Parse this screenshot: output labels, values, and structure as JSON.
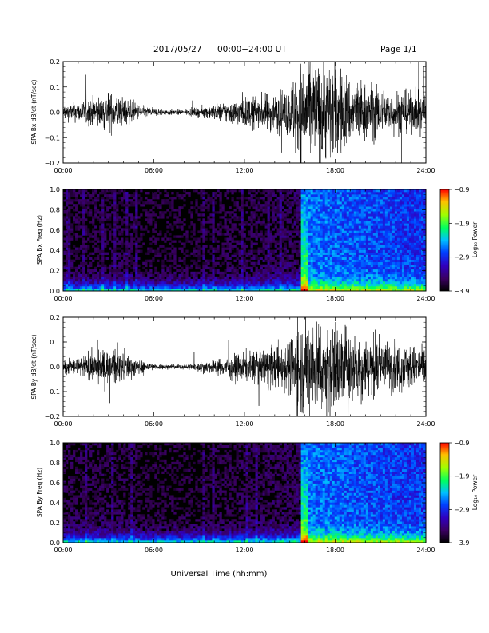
{
  "header": {
    "date_label": "2017/05/27",
    "time_range": "00:00−24:00 UT",
    "page_label": "Page 1/1"
  },
  "xaxis": {
    "ticks": [
      "00:00",
      "06:00",
      "12:00",
      "18:00",
      "24:00"
    ],
    "label": "Universal Time (hh:mm)"
  },
  "colorbar": {
    "labels": [
      "−0.9",
      "−1.9",
      "−2.9",
      "−3.9"
    ],
    "title": "Log₁₀ Power"
  },
  "chart_data": [
    {
      "type": "line",
      "ylabel": "SPA Bx dB/dt (nT/sec)",
      "ylim": [
        -0.2,
        0.2
      ],
      "yticks": [
        "0.2",
        "0.1",
        "0.0",
        "−0.1",
        "−0.2"
      ],
      "xlim": [
        0,
        24
      ],
      "x": [
        0,
        1,
        2,
        3,
        4,
        5,
        6,
        7,
        8,
        9,
        10,
        11,
        12,
        13,
        14,
        15,
        15.5,
        16,
        17,
        18,
        19,
        20,
        21,
        22,
        23,
        24
      ],
      "amplitude": [
        0.03,
        0.04,
        0.06,
        0.08,
        0.06,
        0.03,
        0.015,
        0.012,
        0.01,
        0.02,
        0.03,
        0.05,
        0.06,
        0.07,
        0.08,
        0.1,
        0.2,
        0.2,
        0.2,
        0.2,
        0.15,
        0.12,
        0.1,
        0.09,
        0.08,
        0.07
      ]
    },
    {
      "type": "heatmap",
      "ylabel": "SPA Bx Freq (Hz)",
      "ylim": [
        0.0,
        1.0
      ],
      "yticks": [
        "1.0",
        "0.8",
        "0.6",
        "0.4",
        "0.2",
        "0.0"
      ],
      "xlim": [
        0,
        24
      ],
      "colorbar_range": [
        -3.9,
        -0.9
      ],
      "zlabel": "Log10 Power"
    },
    {
      "type": "line",
      "ylabel": "SPA By dB/dt (nT/sec)",
      "ylim": [
        -0.2,
        0.2
      ],
      "yticks": [
        "0.2",
        "0.1",
        "0.0",
        "−0.1",
        "−0.2"
      ],
      "xlim": [
        0,
        24
      ],
      "x": [
        0,
        1,
        2,
        3,
        4,
        5,
        6,
        7,
        8,
        9,
        10,
        11,
        12,
        13,
        14,
        15,
        15.5,
        16,
        17,
        18,
        19,
        20,
        21,
        22,
        23,
        24
      ],
      "amplitude": [
        0.03,
        0.04,
        0.06,
        0.07,
        0.06,
        0.03,
        0.012,
        0.01,
        0.01,
        0.02,
        0.03,
        0.045,
        0.06,
        0.07,
        0.09,
        0.11,
        0.2,
        0.2,
        0.2,
        0.2,
        0.16,
        0.13,
        0.11,
        0.1,
        0.09,
        0.08
      ]
    },
    {
      "type": "heatmap",
      "ylabel": "SPA By Freq (Hz)",
      "ylim": [
        0.0,
        1.0
      ],
      "yticks": [
        "1.0",
        "0.8",
        "0.6",
        "0.4",
        "0.2",
        "0.0"
      ],
      "xlim": [
        0,
        24
      ],
      "colorbar_range": [
        -3.9,
        -0.9
      ],
      "zlabel": "Log10 Power"
    }
  ]
}
